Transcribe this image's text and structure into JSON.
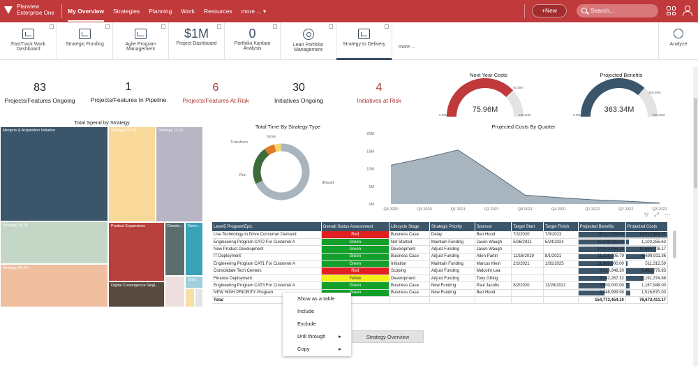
{
  "app": {
    "brand_line1": "Planview",
    "brand_line2": "Enterprise One"
  },
  "nav": {
    "items": [
      "My Overview",
      "Strategies",
      "Planning",
      "Work",
      "Resources",
      "more ... ▾"
    ]
  },
  "topbar": {
    "new_label": "+New",
    "search_placeholder": "Search..."
  },
  "tiles": [
    {
      "label": "FastTrack Work Dashboard",
      "big": ""
    },
    {
      "label": "Strategic Funding",
      "big": ""
    },
    {
      "label": "Agile Program Management",
      "big": ""
    },
    {
      "label": "Project Dashboard",
      "big": "$1M"
    },
    {
      "label": "Portfolio Kanban Analysis",
      "big": "0"
    },
    {
      "label": "Lean Portfolio Management",
      "big": ""
    },
    {
      "label": "Strategy to Delivery",
      "big": ""
    },
    {
      "label": "more ...",
      "big": ""
    }
  ],
  "analyze_label": "Analyze",
  "kpis": [
    {
      "value": "83",
      "label": "Projects/Features Ongoing",
      "color": "#222222"
    },
    {
      "value": "1",
      "label": "Projects/Features In Pipeline",
      "color": "#222222"
    },
    {
      "value": "6",
      "label": "Projects/Features At Risk",
      "color": "#a83232"
    },
    {
      "value": "30",
      "label": "Initiatives Ongoing",
      "color": "#222222"
    },
    {
      "value": "4",
      "label": "Initiatives at Risk",
      "color": "#a83232"
    }
  ],
  "gauges": {
    "next_year": {
      "title": "Next Year Costs",
      "value": "75.96M",
      "fill": 0.76,
      "min": "0.00M",
      "max": "100.00M",
      "target": "75.00M",
      "color": "#c0393b"
    },
    "benefits": {
      "title": "Projected Benefits",
      "value": "363.34M",
      "fill": 0.73,
      "min": "0.00M",
      "max": "500.00M",
      "target": "250.00M",
      "color": "#3b556a"
    }
  },
  "treemap": {
    "title": "Total Spend by Strategy",
    "labels": [
      "Mergers & Acquisition Initiative",
      "Strategy 01-05",
      "Strategy 11-15",
      "Strategy 16-20",
      "Product Expansions",
      "Develo...",
      "Deve...",
      "Strategy 06-10",
      "Digital Convergence Singl...",
      "Shift..."
    ]
  },
  "donut": {
    "title": "Total Time By Strategy Type",
    "slices": [
      {
        "label": "(Blank)",
        "value": 68,
        "color": "#a8b5bf"
      },
      {
        "label": "Run",
        "value": 22,
        "color": "#3e6b3a"
      },
      {
        "label": "Transform",
        "value": 6,
        "color": "#e07b24"
      },
      {
        "label": "Grow",
        "value": 4,
        "color": "#f5d478"
      }
    ]
  },
  "chart_data": {
    "type": "area",
    "title": "Projected Costs By Quarter",
    "categories": [
      "Q3 2020",
      "Q4 2020",
      "Q1 2021",
      "Q2 2021",
      "Q3 2021",
      "Q4 2021",
      "Q1 2022",
      "Q2 2022",
      "Q3 2022"
    ],
    "values": [
      11.0,
      13.0,
      15.3,
      9.0,
      2.5,
      1.8,
      1.2,
      0.8,
      0.3
    ],
    "ylim": [
      0,
      20
    ],
    "yticks": [
      "0M",
      "5M",
      "10M",
      "15M",
      "20M"
    ],
    "color": "#a8b5bf"
  },
  "table": {
    "headers": [
      "Level5 Program\\Epic",
      "Overall Status Assessment",
      "Lifecycle Stage",
      "Strategic Priority",
      "Sponsor",
      "Target Start",
      "Target Finish",
      "Projected Benefits",
      "Projected Costs"
    ],
    "rows": [
      [
        "Use Technology to Drive Consumer Demand",
        "Red",
        "Business Case",
        "Delay",
        "Ben Hood",
        "7/1/2020",
        "7/3/2023",
        "15,111,554.00",
        "14,512,564.07"
      ],
      [
        "Engineering Program CAT2 For Customer A",
        "Green",
        "Not Started",
        "Maintain Funding",
        "Jason Waugh",
        "5/26/2021",
        "5/24/2024",
        "15,000,000.00",
        "1,100,255.63"
      ],
      [
        "New Product Development",
        "Green",
        "Development",
        "Adjust Funding",
        "Jason Waugh",
        "",
        "",
        "14,943,055.16",
        "10,666,708.17"
      ],
      [
        "IT Deployment",
        "Green",
        "Business Case",
        "Adjust Funding",
        "Allen Partin",
        "11/16/2019",
        "8/1/2021",
        "11,228,005.79",
        "6,699,911.36"
      ],
      [
        "Engineering Program CAT1 For Customer A",
        "Green",
        "Initiation",
        "Maintain Funding",
        "Marcus Klein",
        "2/1/2021",
        "1/31/2025",
        "11,000,000.00",
        "511,312.59"
      ],
      [
        "Consolidate Tech Centers",
        "Red",
        "Scoping",
        "Adjust Funding",
        "Malcolm Lea",
        "",
        "",
        "9,619,348.20",
        "9,952,779.83"
      ],
      [
        "Finance Deployment",
        "Yellow",
        "Development",
        "Adjust Funding",
        "Tony Gilling",
        "",
        "",
        "9,142,267.32",
        "6,191,374.88"
      ],
      [
        "Engineering Program CAT3 For Customer A",
        "Green",
        "Business Case",
        "New Funding",
        "Paul Jacobs",
        "8/2/2020",
        "11/28/2021",
        "8,500,000.00",
        "1,187,948.00"
      ],
      [
        "NEW HIGH PRIORITY Program",
        "Green",
        "Business Case",
        "New Funding",
        "Ben Hood",
        "",
        "",
        "8,346,999.98",
        "1,516,670.00"
      ]
    ],
    "total": [
      "Total",
      "",
      "",
      "",
      "",
      "",
      "",
      "154,773,454.10",
      "78,672,411.17"
    ]
  },
  "context_menu": {
    "items": [
      "Show as a table",
      "Include",
      "Exclude",
      "Drill through",
      "Copy"
    ]
  },
  "tooltip": "Strategy Overview"
}
